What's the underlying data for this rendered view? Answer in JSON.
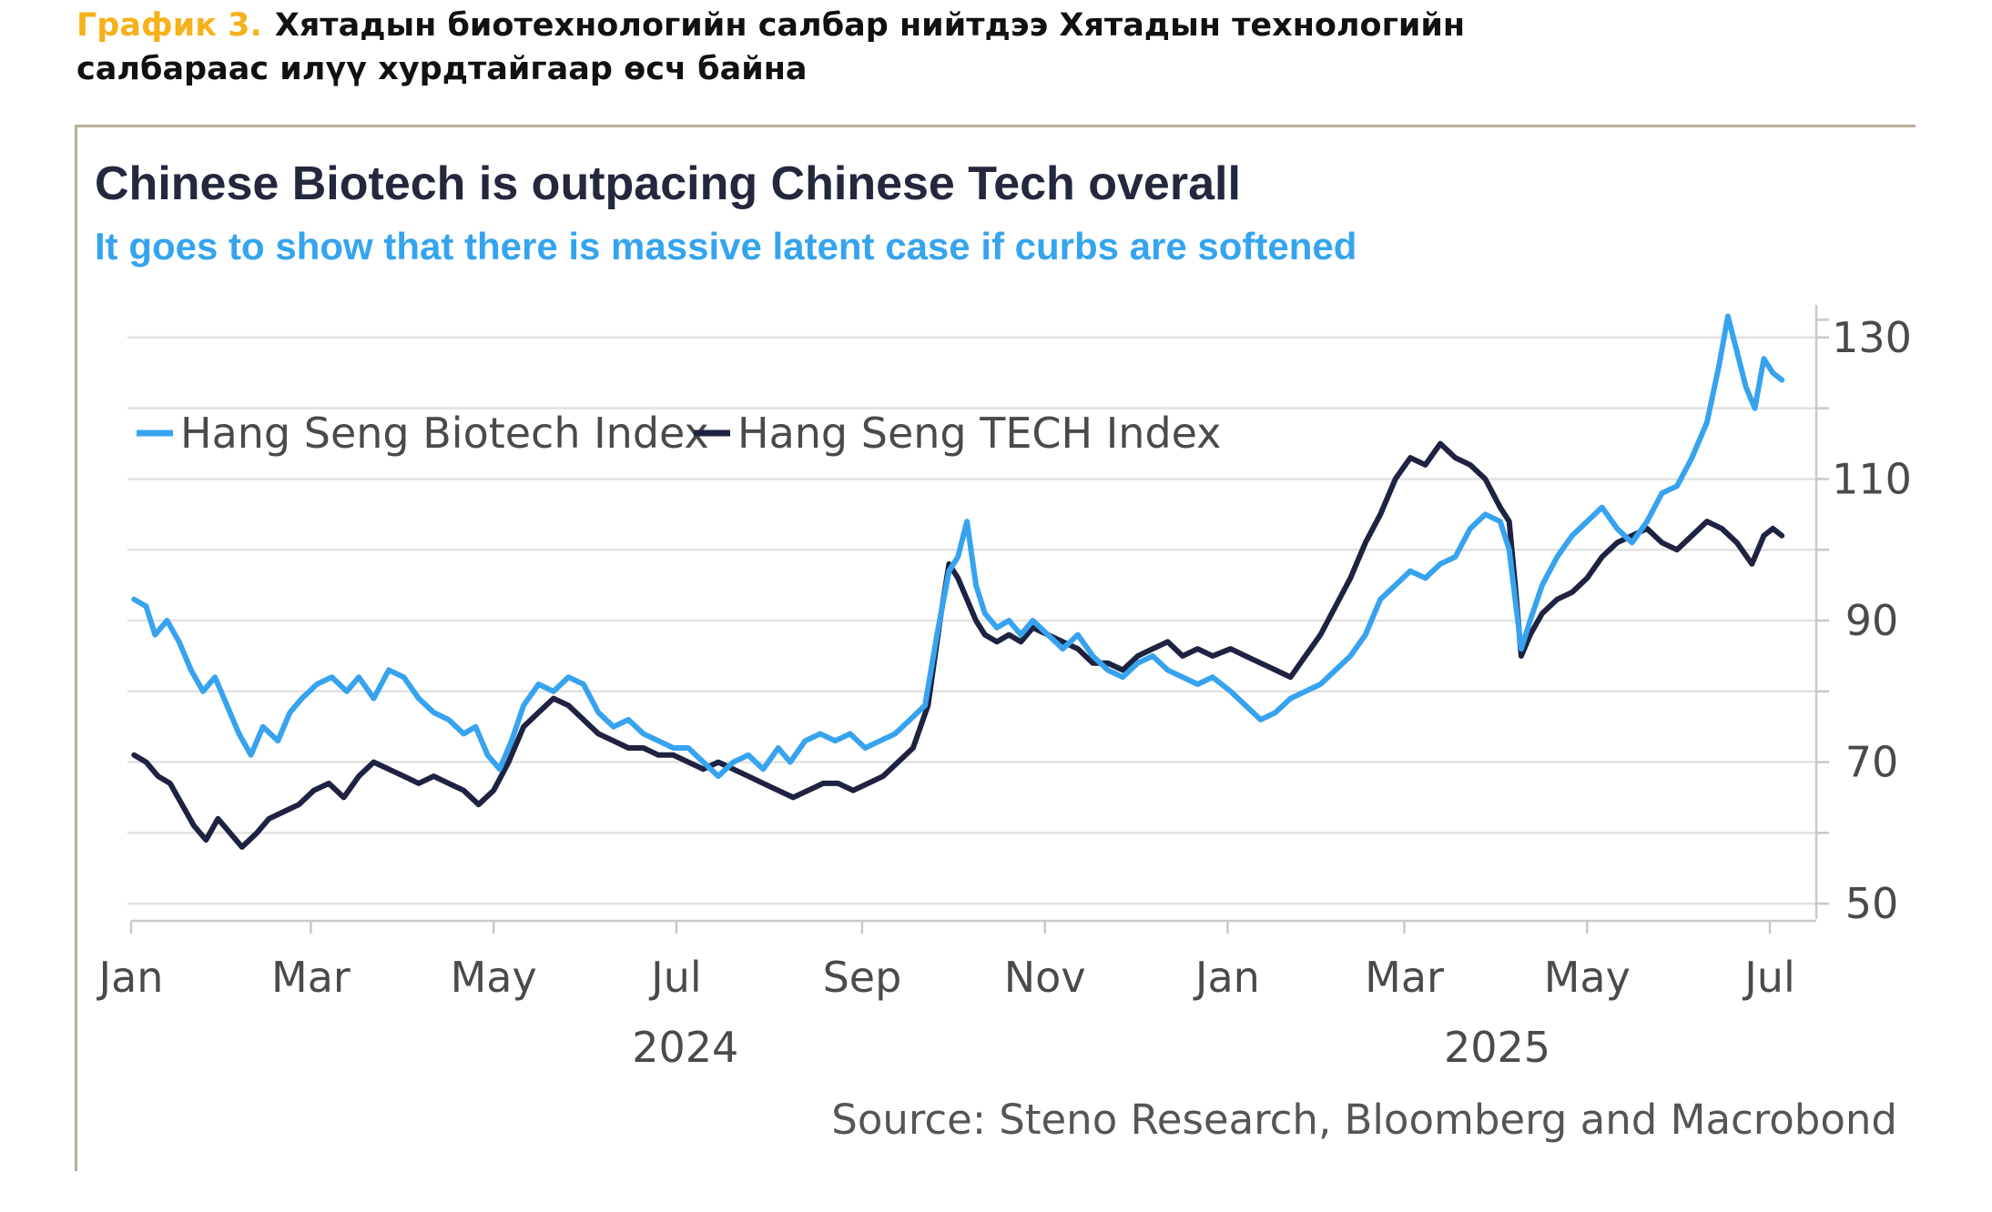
{
  "caption": {
    "number": "График 3.",
    "line1": "Хятадын биотехнологийн салбар нийтдээ Хятадын технологийн",
    "line2": "салбараас илүү хурдтайгаар өсч байна"
  },
  "source": "Source: Steno Research, Bloomberg and Macrobond",
  "colors": {
    "biotech": "#37a3ef",
    "tech": "#1d2340",
    "grid": "#e2e2e2",
    "axis": "#c8c8c8"
  },
  "chart_data": {
    "type": "line",
    "title": "Chinese Biotech is outpacing Chinese Tech overall",
    "subtitle": "It goes to show that there is massive latent case if curbs are softened",
    "xlabel": "",
    "ylabel": "",
    "x_range": [
      "2024-01-01",
      "2025-07-01"
    ],
    "ylim": [
      45,
      135
    ],
    "y_ticks": [
      50,
      70,
      90,
      110,
      130
    ],
    "y_minor_ticks": [
      60,
      80,
      100,
      120
    ],
    "grid": true,
    "y_axis_position": "right",
    "legend_position": "top-left",
    "x_ticks": [
      {
        "date": "2024-01-01",
        "label": "Jan"
      },
      {
        "date": "2024-03-01",
        "label": "Mar"
      },
      {
        "date": "2024-05-01",
        "label": "May"
      },
      {
        "date": "2024-07-01",
        "label": "Jul"
      },
      {
        "date": "2024-09-01",
        "label": "Sep"
      },
      {
        "date": "2024-11-01",
        "label": "Nov"
      },
      {
        "date": "2025-01-01",
        "label": "Jan"
      },
      {
        "date": "2025-03-01",
        "label": "Mar"
      },
      {
        "date": "2025-05-01",
        "label": "May"
      },
      {
        "date": "2025-07-01",
        "label": "Jul"
      }
    ],
    "year_labels": [
      {
        "date": "2024-07-04",
        "label": "2024"
      },
      {
        "date": "2025-04-01",
        "label": "2025"
      }
    ],
    "series": [
      {
        "name": "Hang Seng Biotech Index",
        "points": [
          [
            "2024-01-02",
            93
          ],
          [
            "2024-01-06",
            92
          ],
          [
            "2024-01-09",
            88
          ],
          [
            "2024-01-13",
            90
          ],
          [
            "2024-01-17",
            87
          ],
          [
            "2024-01-21",
            83
          ],
          [
            "2024-01-25",
            80
          ],
          [
            "2024-01-29",
            82
          ],
          [
            "2024-02-02",
            78
          ],
          [
            "2024-02-06",
            74
          ],
          [
            "2024-02-10",
            71
          ],
          [
            "2024-02-14",
            75
          ],
          [
            "2024-02-19",
            73
          ],
          [
            "2024-02-23",
            77
          ],
          [
            "2024-02-27",
            79
          ],
          [
            "2024-03-03",
            81
          ],
          [
            "2024-03-08",
            82
          ],
          [
            "2024-03-13",
            80
          ],
          [
            "2024-03-17",
            82
          ],
          [
            "2024-03-22",
            79
          ],
          [
            "2024-03-27",
            83
          ],
          [
            "2024-04-01",
            82
          ],
          [
            "2024-04-06",
            79
          ],
          [
            "2024-04-11",
            77
          ],
          [
            "2024-04-16",
            76
          ],
          [
            "2024-04-21",
            74
          ],
          [
            "2024-04-25",
            75
          ],
          [
            "2024-04-29",
            71
          ],
          [
            "2024-05-03",
            69
          ],
          [
            "2024-05-07",
            73
          ],
          [
            "2024-05-11",
            78
          ],
          [
            "2024-05-16",
            81
          ],
          [
            "2024-05-21",
            80
          ],
          [
            "2024-05-26",
            82
          ],
          [
            "2024-05-31",
            81
          ],
          [
            "2024-06-05",
            77
          ],
          [
            "2024-06-10",
            75
          ],
          [
            "2024-06-15",
            76
          ],
          [
            "2024-06-20",
            74
          ],
          [
            "2024-06-25",
            73
          ],
          [
            "2024-06-30",
            72
          ],
          [
            "2024-07-05",
            72
          ],
          [
            "2024-07-10",
            70
          ],
          [
            "2024-07-15",
            68
          ],
          [
            "2024-07-20",
            70
          ],
          [
            "2024-07-25",
            71
          ],
          [
            "2024-07-30",
            69
          ],
          [
            "2024-08-04",
            72
          ],
          [
            "2024-08-08",
            70
          ],
          [
            "2024-08-13",
            73
          ],
          [
            "2024-08-18",
            74
          ],
          [
            "2024-08-23",
            73
          ],
          [
            "2024-08-28",
            74
          ],
          [
            "2024-09-02",
            72
          ],
          [
            "2024-09-07",
            73
          ],
          [
            "2024-09-12",
            74
          ],
          [
            "2024-09-17",
            76
          ],
          [
            "2024-09-22",
            78
          ],
          [
            "2024-09-26",
            88
          ],
          [
            "2024-09-30",
            97
          ],
          [
            "2024-10-03",
            99
          ],
          [
            "2024-10-06",
            104
          ],
          [
            "2024-10-09",
            95
          ],
          [
            "2024-10-12",
            91
          ],
          [
            "2024-10-16",
            89
          ],
          [
            "2024-10-20",
            90
          ],
          [
            "2024-10-24",
            88
          ],
          [
            "2024-10-28",
            90
          ],
          [
            "2024-11-02",
            88
          ],
          [
            "2024-11-07",
            86
          ],
          [
            "2024-11-12",
            88
          ],
          [
            "2024-11-17",
            85
          ],
          [
            "2024-11-22",
            83
          ],
          [
            "2024-11-27",
            82
          ],
          [
            "2024-12-02",
            84
          ],
          [
            "2024-12-07",
            85
          ],
          [
            "2024-12-12",
            83
          ],
          [
            "2024-12-17",
            82
          ],
          [
            "2024-12-22",
            81
          ],
          [
            "2024-12-27",
            82
          ],
          [
            "2025-01-02",
            80
          ],
          [
            "2025-01-07",
            78
          ],
          [
            "2025-01-12",
            76
          ],
          [
            "2025-01-17",
            77
          ],
          [
            "2025-01-22",
            79
          ],
          [
            "2025-01-27",
            80
          ],
          [
            "2025-02-01",
            81
          ],
          [
            "2025-02-06",
            83
          ],
          [
            "2025-02-11",
            85
          ],
          [
            "2025-02-16",
            88
          ],
          [
            "2025-02-21",
            93
          ],
          [
            "2025-02-26",
            95
          ],
          [
            "2025-03-03",
            97
          ],
          [
            "2025-03-08",
            96
          ],
          [
            "2025-03-13",
            98
          ],
          [
            "2025-03-18",
            99
          ],
          [
            "2025-03-23",
            103
          ],
          [
            "2025-03-28",
            105
          ],
          [
            "2025-04-02",
            104
          ],
          [
            "2025-04-05",
            100
          ],
          [
            "2025-04-07",
            93
          ],
          [
            "2025-04-09",
            86
          ],
          [
            "2025-04-12",
            90
          ],
          [
            "2025-04-16",
            95
          ],
          [
            "2025-04-21",
            99
          ],
          [
            "2025-04-26",
            102
          ],
          [
            "2025-05-01",
            104
          ],
          [
            "2025-05-06",
            106
          ],
          [
            "2025-05-11",
            103
          ],
          [
            "2025-05-16",
            101
          ],
          [
            "2025-05-21",
            104
          ],
          [
            "2025-05-26",
            108
          ],
          [
            "2025-05-31",
            109
          ],
          [
            "2025-06-05",
            113
          ],
          [
            "2025-06-10",
            118
          ],
          [
            "2025-06-14",
            126
          ],
          [
            "2025-06-17",
            133
          ],
          [
            "2025-06-20",
            128
          ],
          [
            "2025-06-23",
            123
          ],
          [
            "2025-06-26",
            120
          ],
          [
            "2025-06-29",
            127
          ],
          [
            "2025-07-02",
            125
          ],
          [
            "2025-07-05",
            124
          ]
        ]
      },
      {
        "name": "Hang Seng TECH Index",
        "points": [
          [
            "2024-01-02",
            71
          ],
          [
            "2024-01-06",
            70
          ],
          [
            "2024-01-10",
            68
          ],
          [
            "2024-01-14",
            67
          ],
          [
            "2024-01-18",
            64
          ],
          [
            "2024-01-22",
            61
          ],
          [
            "2024-01-26",
            59
          ],
          [
            "2024-01-30",
            62
          ],
          [
            "2024-02-03",
            60
          ],
          [
            "2024-02-07",
            58
          ],
          [
            "2024-02-12",
            60
          ],
          [
            "2024-02-16",
            62
          ],
          [
            "2024-02-21",
            63
          ],
          [
            "2024-02-26",
            64
          ],
          [
            "2024-03-02",
            66
          ],
          [
            "2024-03-07",
            67
          ],
          [
            "2024-03-12",
            65
          ],
          [
            "2024-03-17",
            68
          ],
          [
            "2024-03-22",
            70
          ],
          [
            "2024-03-27",
            69
          ],
          [
            "2024-04-01",
            68
          ],
          [
            "2024-04-06",
            67
          ],
          [
            "2024-04-11",
            68
          ],
          [
            "2024-04-16",
            67
          ],
          [
            "2024-04-21",
            66
          ],
          [
            "2024-04-26",
            64
          ],
          [
            "2024-05-01",
            66
          ],
          [
            "2024-05-06",
            70
          ],
          [
            "2024-05-11",
            75
          ],
          [
            "2024-05-16",
            77
          ],
          [
            "2024-05-21",
            79
          ],
          [
            "2024-05-26",
            78
          ],
          [
            "2024-05-31",
            76
          ],
          [
            "2024-06-05",
            74
          ],
          [
            "2024-06-10",
            73
          ],
          [
            "2024-06-15",
            72
          ],
          [
            "2024-06-20",
            72
          ],
          [
            "2024-06-25",
            71
          ],
          [
            "2024-06-30",
            71
          ],
          [
            "2024-07-05",
            70
          ],
          [
            "2024-07-10",
            69
          ],
          [
            "2024-07-15",
            70
          ],
          [
            "2024-07-20",
            69
          ],
          [
            "2024-07-25",
            68
          ],
          [
            "2024-07-30",
            67
          ],
          [
            "2024-08-04",
            66
          ],
          [
            "2024-08-09",
            65
          ],
          [
            "2024-08-14",
            66
          ],
          [
            "2024-08-19",
            67
          ],
          [
            "2024-08-24",
            67
          ],
          [
            "2024-08-29",
            66
          ],
          [
            "2024-09-03",
            67
          ],
          [
            "2024-09-08",
            68
          ],
          [
            "2024-09-13",
            70
          ],
          [
            "2024-09-18",
            72
          ],
          [
            "2024-09-23",
            78
          ],
          [
            "2024-09-27",
            90
          ],
          [
            "2024-09-30",
            98
          ],
          [
            "2024-10-03",
            96
          ],
          [
            "2024-10-06",
            93
          ],
          [
            "2024-10-09",
            90
          ],
          [
            "2024-10-12",
            88
          ],
          [
            "2024-10-16",
            87
          ],
          [
            "2024-10-20",
            88
          ],
          [
            "2024-10-24",
            87
          ],
          [
            "2024-10-28",
            89
          ],
          [
            "2024-11-02",
            88
          ],
          [
            "2024-11-07",
            87
          ],
          [
            "2024-11-12",
            86
          ],
          [
            "2024-11-17",
            84
          ],
          [
            "2024-11-22",
            84
          ],
          [
            "2024-11-27",
            83
          ],
          [
            "2024-12-02",
            85
          ],
          [
            "2024-12-07",
            86
          ],
          [
            "2024-12-12",
            87
          ],
          [
            "2024-12-17",
            85
          ],
          [
            "2024-12-22",
            86
          ],
          [
            "2024-12-27",
            85
          ],
          [
            "2025-01-02",
            86
          ],
          [
            "2025-01-07",
            85
          ],
          [
            "2025-01-12",
            84
          ],
          [
            "2025-01-17",
            83
          ],
          [
            "2025-01-22",
            82
          ],
          [
            "2025-01-27",
            85
          ],
          [
            "2025-02-01",
            88
          ],
          [
            "2025-02-06",
            92
          ],
          [
            "2025-02-11",
            96
          ],
          [
            "2025-02-16",
            101
          ],
          [
            "2025-02-21",
            105
          ],
          [
            "2025-02-26",
            110
          ],
          [
            "2025-03-03",
            113
          ],
          [
            "2025-03-08",
            112
          ],
          [
            "2025-03-13",
            115
          ],
          [
            "2025-03-18",
            113
          ],
          [
            "2025-03-23",
            112
          ],
          [
            "2025-03-28",
            110
          ],
          [
            "2025-04-02",
            106
          ],
          [
            "2025-04-05",
            104
          ],
          [
            "2025-04-07",
            95
          ],
          [
            "2025-04-09",
            85
          ],
          [
            "2025-04-12",
            88
          ],
          [
            "2025-04-16",
            91
          ],
          [
            "2025-04-21",
            93
          ],
          [
            "2025-04-26",
            94
          ],
          [
            "2025-05-01",
            96
          ],
          [
            "2025-05-06",
            99
          ],
          [
            "2025-05-11",
            101
          ],
          [
            "2025-05-16",
            102
          ],
          [
            "2025-05-21",
            103
          ],
          [
            "2025-05-26",
            101
          ],
          [
            "2025-05-31",
            100
          ],
          [
            "2025-06-05",
            102
          ],
          [
            "2025-06-10",
            104
          ],
          [
            "2025-06-15",
            103
          ],
          [
            "2025-06-20",
            101
          ],
          [
            "2025-06-25",
            98
          ],
          [
            "2025-06-29",
            102
          ],
          [
            "2025-07-02",
            103
          ],
          [
            "2025-07-05",
            102
          ]
        ]
      }
    ]
  }
}
